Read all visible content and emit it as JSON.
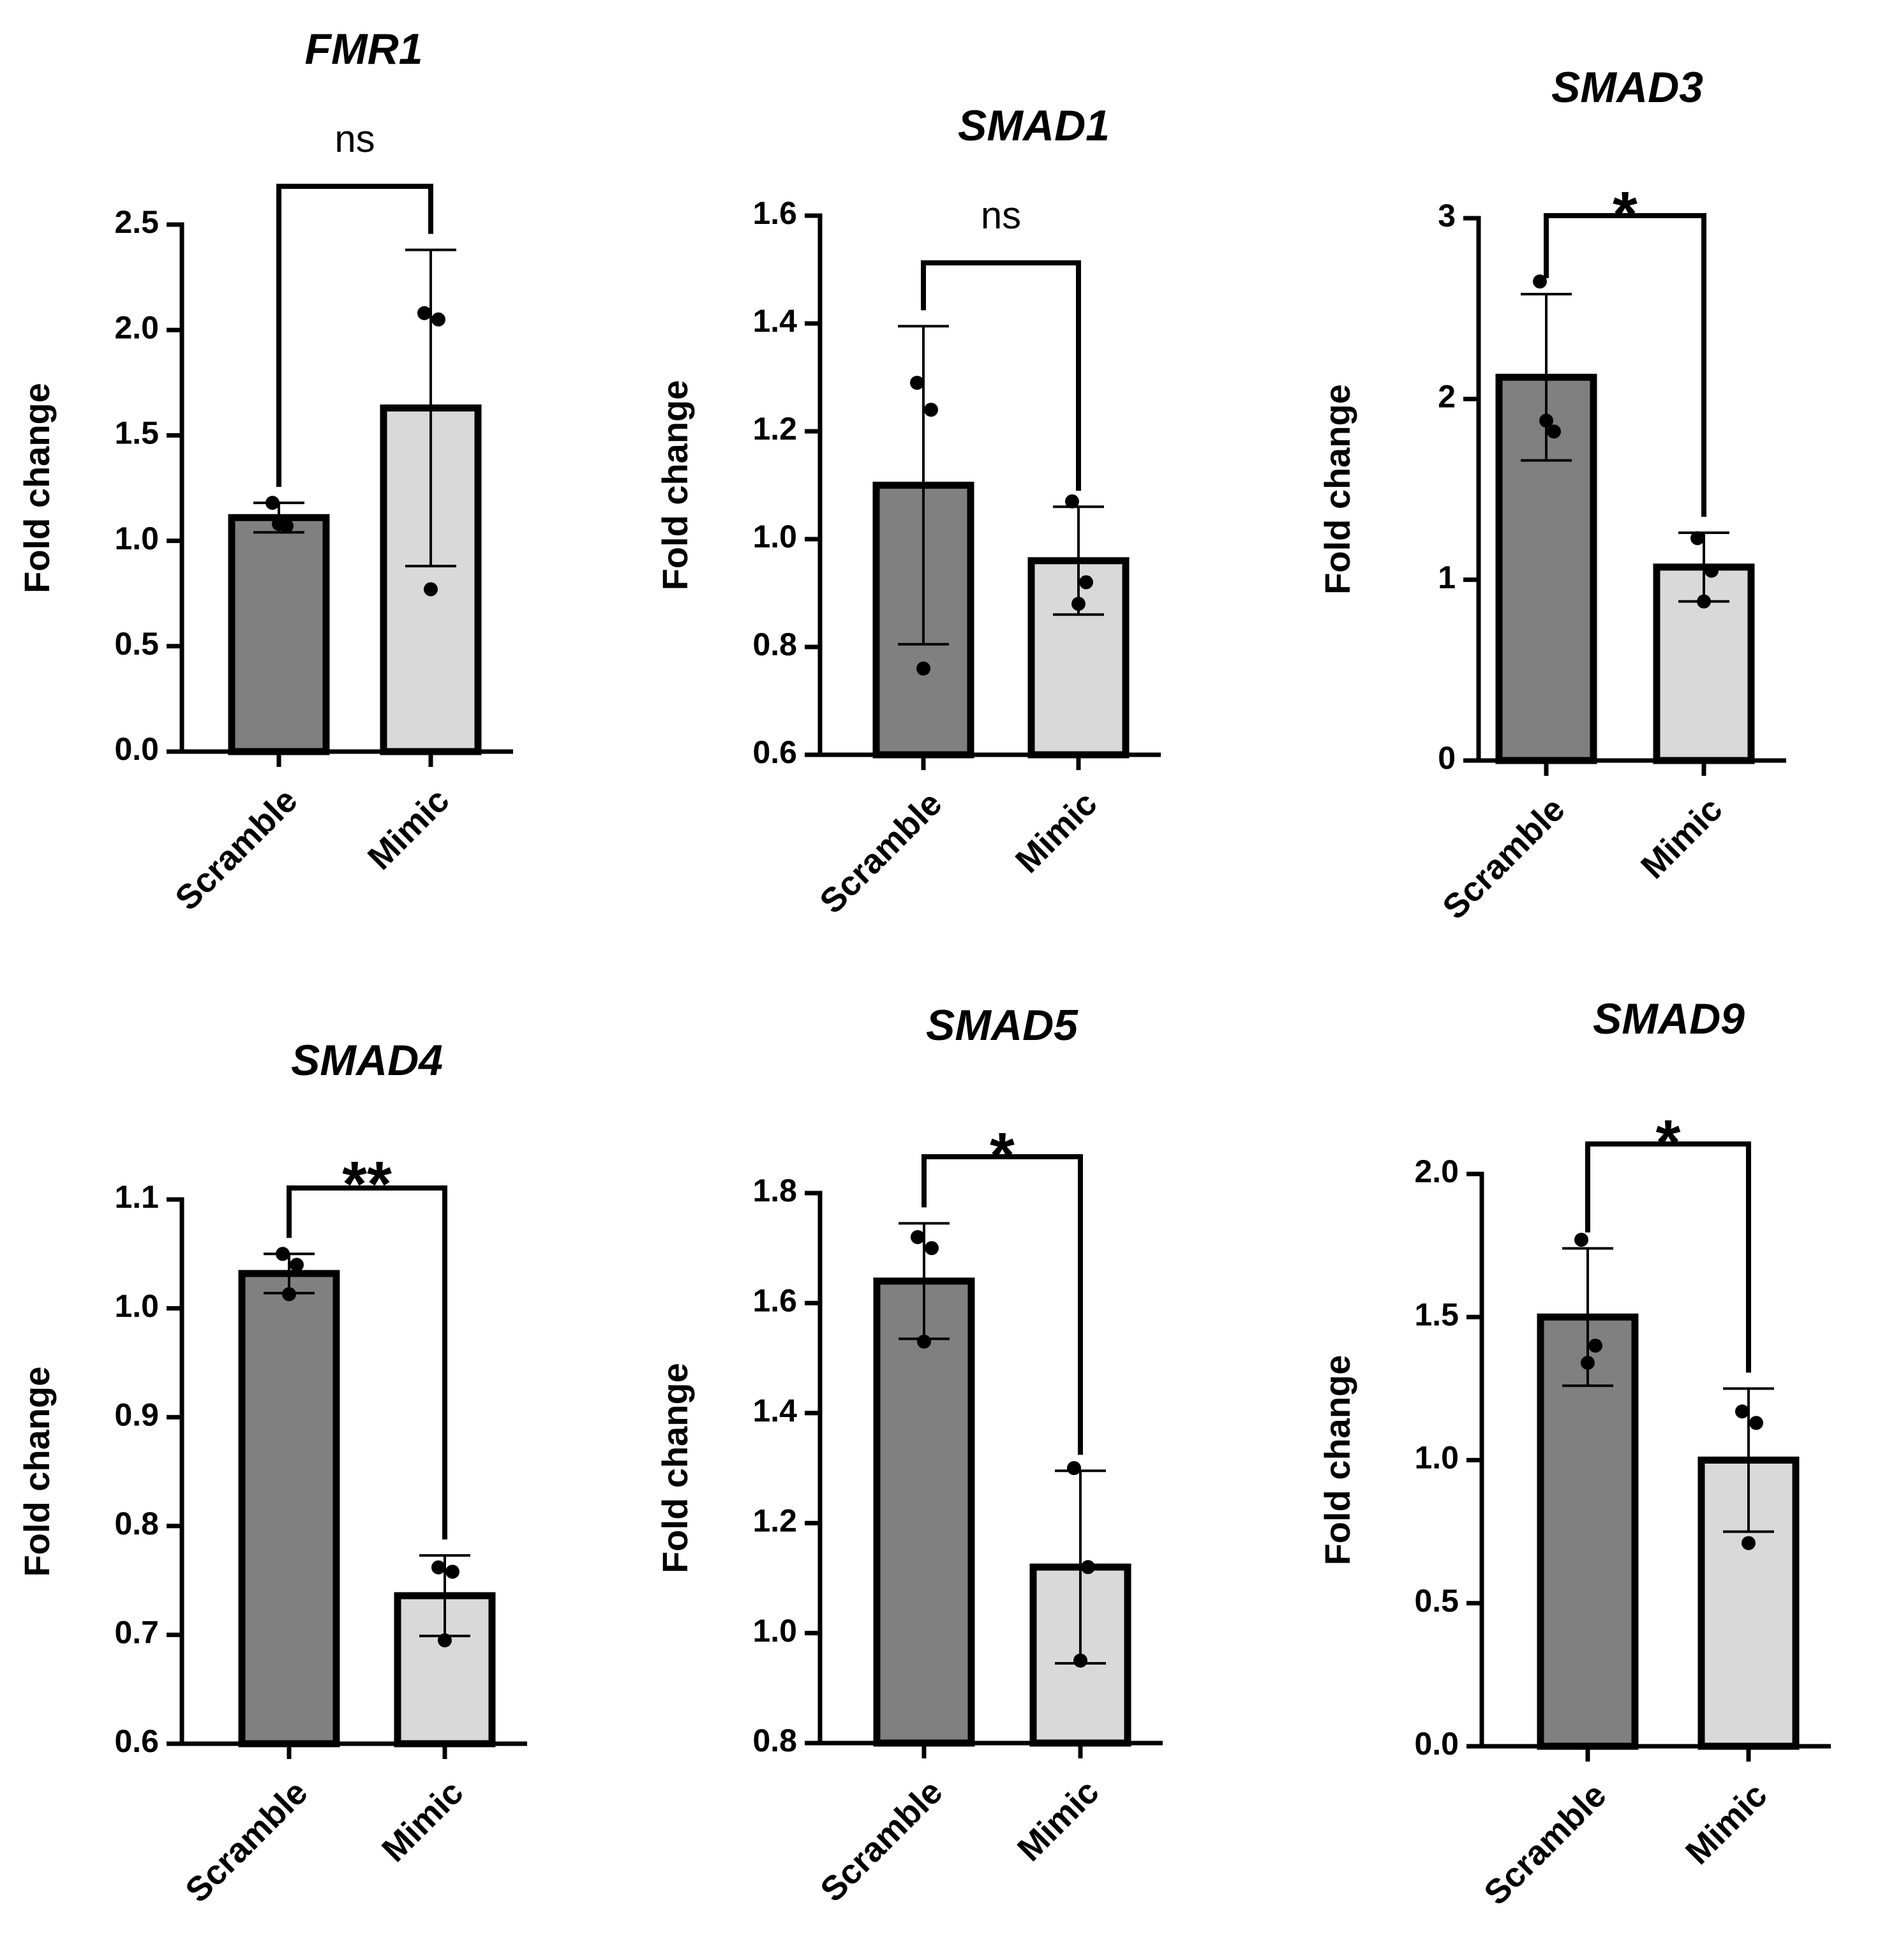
{
  "chart_data": [
    {
      "type": "bar",
      "title": "FMR1",
      "ylabel": "Fold change",
      "categories": [
        "Scramble",
        "Mimic"
      ],
      "ylim": [
        0.0,
        2.5
      ],
      "yticks": [
        "0.0",
        "0.5",
        "1.0",
        "1.5",
        "2.0",
        "2.5"
      ],
      "values": [
        1.11,
        1.63
      ],
      "errors": [
        0.07,
        0.75
      ],
      "points": [
        [
          1.18,
          1.07,
          1.08
        ],
        [
          2.08,
          2.05,
          0.77
        ]
      ],
      "significance": "ns",
      "bar_colors": [
        "#808080",
        "#d9d9d9"
      ]
    },
    {
      "type": "bar",
      "title": "SMAD1",
      "ylabel": "Fold change",
      "categories": [
        "Scramble",
        "Mimic"
      ],
      "ylim": [
        0.6,
        1.6
      ],
      "yticks": [
        "0.6",
        "0.8",
        "1.0",
        "1.2",
        "1.4",
        "1.6"
      ],
      "values": [
        1.1,
        0.96
      ],
      "errors": [
        0.295,
        0.1
      ],
      "points": [
        [
          1.29,
          1.24,
          0.76
        ],
        [
          1.07,
          0.92,
          0.88
        ]
      ],
      "significance": "ns",
      "bar_colors": [
        "#808080",
        "#d9d9d9"
      ]
    },
    {
      "type": "bar",
      "title": "SMAD3",
      "ylabel": "Fold change",
      "categories": [
        "Scramble",
        "Mimic"
      ],
      "ylim": [
        0,
        3
      ],
      "yticks": [
        "0",
        "1",
        "2",
        "3"
      ],
      "values": [
        2.12,
        1.07
      ],
      "errors": [
        0.46,
        0.19
      ],
      "points": [
        [
          2.65,
          1.82,
          1.88
        ],
        [
          1.23,
          1.05,
          0.88
        ]
      ],
      "significance": "*",
      "bar_colors": [
        "#808080",
        "#d9d9d9"
      ]
    },
    {
      "type": "bar",
      "title": "SMAD4",
      "ylabel": "Fold change",
      "categories": [
        "Scramble",
        "Mimic"
      ],
      "ylim": [
        0.6,
        1.1
      ],
      "yticks": [
        "0.6",
        "0.7",
        "0.8",
        "0.9",
        "1.0",
        "1.1"
      ],
      "values": [
        1.032,
        0.736
      ],
      "errors": [
        0.018,
        0.037
      ],
      "points": [
        [
          1.05,
          1.04,
          1.013
        ],
        [
          0.762,
          0.758,
          0.695
        ]
      ],
      "significance": "**",
      "bar_colors": [
        "#808080",
        "#d9d9d9"
      ]
    },
    {
      "type": "bar",
      "title": "SMAD5",
      "ylabel": "Fold change",
      "categories": [
        "Scramble",
        "Mimic"
      ],
      "ylim": [
        0.8,
        1.8
      ],
      "yticks": [
        "0.8",
        "1.0",
        "1.2",
        "1.4",
        "1.6",
        "1.8"
      ],
      "values": [
        1.64,
        1.12
      ],
      "errors": [
        0.105,
        0.175
      ],
      "points": [
        [
          1.72,
          1.7,
          1.53
        ],
        [
          1.3,
          1.12,
          0.95
        ]
      ],
      "significance": "*",
      "bar_colors": [
        "#808080",
        "#d9d9d9"
      ]
    },
    {
      "type": "bar",
      "title": "SMAD9",
      "ylabel": "Fold change",
      "categories": [
        "Scramble",
        "Mimic"
      ],
      "ylim": [
        0.0,
        2.0
      ],
      "yticks": [
        "0.0",
        "0.5",
        "1.0",
        "1.5",
        "2.0"
      ],
      "values": [
        1.5,
        1.0
      ],
      "errors": [
        0.24,
        0.25
      ],
      "points": [
        [
          1.77,
          1.4,
          1.34
        ],
        [
          1.17,
          1.13,
          0.71
        ]
      ],
      "significance": "*",
      "bar_colors": [
        "#808080",
        "#d9d9d9"
      ]
    }
  ]
}
